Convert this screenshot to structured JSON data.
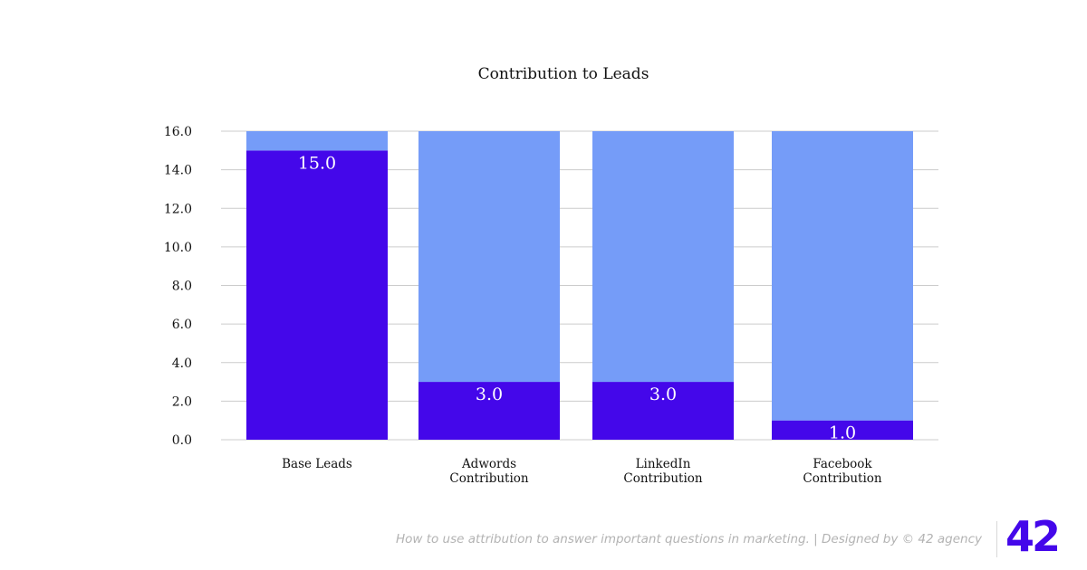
{
  "chart_data": {
    "type": "bar",
    "stacked": true,
    "title": "Contribution to Leads",
    "xlabel": "",
    "ylabel": "",
    "ylim": [
      0,
      16
    ],
    "yticks": [
      "0.0",
      "2.0",
      "4.0",
      "6.0",
      "8.0",
      "10.0",
      "12.0",
      "14.0",
      "16.0"
    ],
    "grid": true,
    "legend": "none",
    "categories": [
      [
        "Base Leads"
      ],
      [
        "Adwords",
        "Contribution"
      ],
      [
        "LinkedIn",
        "Contribution"
      ],
      [
        "Facebook",
        "Contribution"
      ]
    ],
    "series": [
      {
        "values": [
          15,
          3,
          3,
          1
        ],
        "labels": [
          "15.0",
          "3.0",
          "3.0",
          "1.0"
        ],
        "color": "#4407ea"
      },
      {
        "values": [
          1,
          13,
          13,
          15
        ],
        "color": "#759cf8"
      }
    ]
  },
  "footer": {
    "caption": "How to use attribution to answer important questions in marketing. | Designed by © 42 agency",
    "logo_text": "42"
  },
  "colors": {
    "primary": "#4407ea",
    "secondary": "#759cf8",
    "grid": "#cccccc",
    "caption": "#b3b3b3"
  }
}
